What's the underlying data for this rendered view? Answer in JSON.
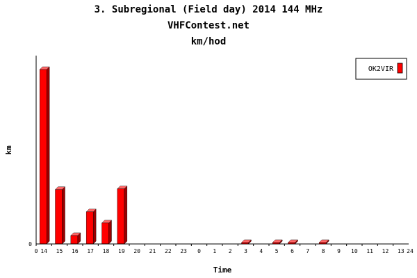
{
  "chart_data": {
    "type": "bar",
    "title": "3. Subregional (Field day) 2014 144 MHz",
    "subtitle": "VHFContest.net",
    "subtitle2": "km/hod",
    "xlabel": "Time",
    "ylabel": "km",
    "x_axis_left_label": "0",
    "x_axis_right_label": "24",
    "y_zero_label": "0",
    "categories": [
      "14",
      "15",
      "16",
      "17",
      "18",
      "19",
      "20",
      "21",
      "22",
      "23",
      "0",
      "1",
      "2",
      "3",
      "4",
      "5",
      "6",
      "7",
      "8",
      "9",
      "10",
      "11",
      "12",
      "13"
    ],
    "series": [
      {
        "name": "OK2VIR",
        "values": [
          250,
          78,
          12,
          46,
          30,
          79,
          0,
          0,
          0,
          0,
          0,
          0,
          0,
          1,
          0,
          1,
          1,
          0,
          1,
          0,
          0,
          0,
          0,
          0
        ]
      }
    ],
    "ylim": [
      0,
      270
    ],
    "grid": false,
    "legend_position": "top-right",
    "colors": {
      "bar": "#ff0000",
      "bar_side": "#990000",
      "bar_top": "#ff6666"
    }
  }
}
